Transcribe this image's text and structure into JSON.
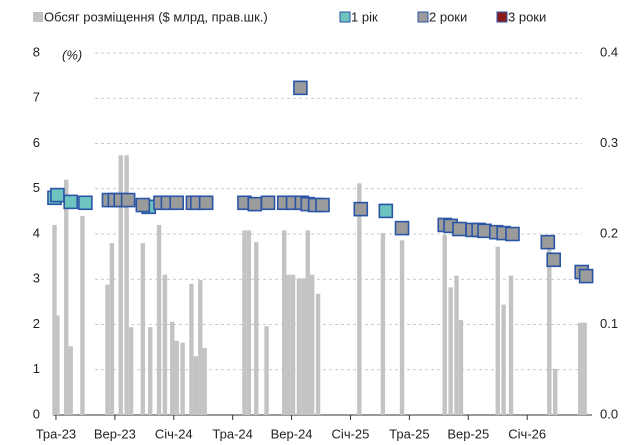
{
  "chart_data": {
    "type": "bar",
    "y_unit_label": "(%)",
    "xlim": [
      -0.2,
      36.4
    ],
    "xticks": [
      {
        "value": 0,
        "label": "Тра-23"
      },
      {
        "value": 4,
        "label": "Вер-23"
      },
      {
        "value": 8,
        "label": "Січ-24"
      },
      {
        "value": 12,
        "label": "Тра-24"
      },
      {
        "value": 16,
        "label": "Вер-24"
      },
      {
        "value": 20,
        "label": "Січ-25"
      },
      {
        "value": 24,
        "label": "Тра-25"
      },
      {
        "value": 28,
        "label": "Вер-25"
      },
      {
        "value": 32,
        "label": "Січ-26"
      }
    ],
    "ylim": [
      0,
      8
    ],
    "yticks": [
      0,
      1,
      2,
      3,
      4,
      5,
      6,
      7,
      8
    ],
    "y2lim": [
      0,
      0.4
    ],
    "y2ticks": [
      {
        "value": 0,
        "label": "0.0"
      },
      0.1,
      0.2,
      0.3,
      0.4
    ],
    "grid": true,
    "series": [
      {
        "name": "Обсяг розміщення ($ млрд, прав.шк.)",
        "type": "bar",
        "axis": "y2",
        "color": "#c3c3c3",
        "x": [
          -0.1,
          0.1,
          0.7,
          1.0,
          1.8,
          3.5,
          3.8,
          4.4,
          4.8,
          5.1,
          5.9,
          6.4,
          7.0,
          7.4,
          7.9,
          8.2,
          8.6,
          9.2,
          9.5,
          9.8,
          10.1,
          12.8,
          13.1,
          13.6,
          14.3,
          15.5,
          15.8,
          16.1,
          16.5,
          16.8,
          17.1,
          17.4,
          17.8,
          20.6,
          22.2,
          23.5,
          26.4,
          26.8,
          27.2,
          27.5,
          30.0,
          30.4,
          30.9,
          33.5,
          33.9,
          35.6,
          35.9
        ],
        "values": [
          0.21,
          0.11,
          0.26,
          0.076,
          0.22,
          0.144,
          0.19,
          0.287,
          0.287,
          0.097,
          0.19,
          0.097,
          0.21,
          0.155,
          0.103,
          0.082,
          0.08,
          0.145,
          0.065,
          0.149,
          0.074,
          0.204,
          0.204,
          0.191,
          0.098,
          0.204,
          0.155,
          0.155,
          0.151,
          0.151,
          0.204,
          0.155,
          0.134,
          0.256,
          0.201,
          0.193,
          0.199,
          0.141,
          0.154,
          0.105,
          0.186,
          0.122,
          0.154,
          0.193,
          0.051,
          0.102,
          0.102
        ]
      },
      {
        "name": "1 рік",
        "type": "scatter",
        "color": "#6ec4bf",
        "x": [
          -0.1,
          0.1,
          1.0,
          2.0,
          6.3,
          22.4
        ],
        "values": [
          4.8,
          4.86,
          4.71,
          4.69,
          4.6,
          4.51
        ]
      },
      {
        "name": "2 роки",
        "type": "scatter",
        "color": "#9b9b9b",
        "x": [
          3.6,
          4.0,
          4.4,
          4.9,
          5.9,
          7.1,
          7.6,
          8.2,
          9.3,
          9.6,
          10.2,
          12.8,
          13.5,
          14.4,
          15.5,
          16.1,
          16.7,
          17.1,
          17.6,
          18.1,
          16.6,
          20.7,
          23.5,
          26.4,
          26.8,
          27.4,
          28.3,
          28.7,
          29.1,
          29.9,
          30.4,
          31.0,
          33.4,
          33.8,
          35.7,
          36.0
        ],
        "values": [
          4.75,
          4.75,
          4.75,
          4.75,
          4.64,
          4.69,
          4.69,
          4.69,
          4.69,
          4.69,
          4.69,
          4.69,
          4.66,
          4.69,
          4.69,
          4.69,
          4.69,
          4.66,
          4.64,
          4.64,
          7.23,
          4.55,
          4.13,
          4.2,
          4.18,
          4.11,
          4.09,
          4.09,
          4.07,
          4.04,
          4.02,
          4.0,
          3.82,
          3.43,
          3.16,
          3.07
        ]
      },
      {
        "name": "3 роки",
        "type": "scatter",
        "color": "#8b1a1a",
        "x": [],
        "values": []
      }
    ]
  }
}
